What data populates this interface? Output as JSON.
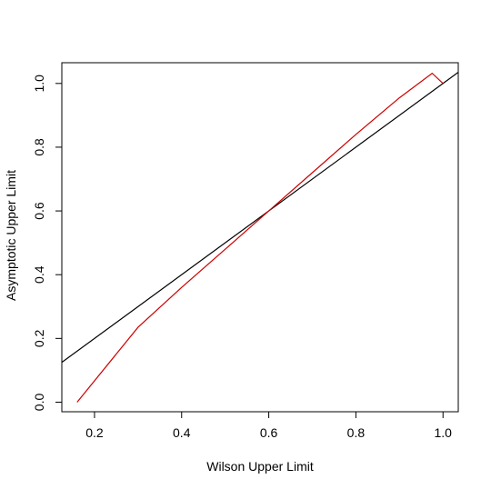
{
  "chart_data": {
    "type": "line",
    "xlabel": "Wilson Upper Limit",
    "ylabel": "Asymptotic Upper Limit",
    "xlim": [
      0.125,
      1.035
    ],
    "ylim": [
      -0.03,
      1.065
    ],
    "xticks": [
      0.2,
      0.4,
      0.6,
      0.8,
      1.0
    ],
    "yticks": [
      0.0,
      0.2,
      0.4,
      0.6,
      0.8,
      1.0
    ],
    "xtick_labels": [
      "0.2",
      "0.4",
      "0.6",
      "0.8",
      "1.0"
    ],
    "ytick_labels": [
      "0.0",
      "0.2",
      "0.4",
      "0.6",
      "0.8",
      "1.0"
    ],
    "grid": false,
    "series": [
      {
        "color": "#cc0000",
        "x": [
          0.16,
          0.3,
          0.4,
          0.5,
          0.6,
          0.7,
          0.8,
          0.9,
          0.975,
          1.0
        ],
        "y": [
          0.0,
          0.235,
          0.36,
          0.48,
          0.6,
          0.72,
          0.84,
          0.955,
          1.032,
          1.0
        ]
      }
    ],
    "reference_line": {
      "color": "#000000",
      "intercept": 0.0,
      "slope": 1.0
    }
  }
}
